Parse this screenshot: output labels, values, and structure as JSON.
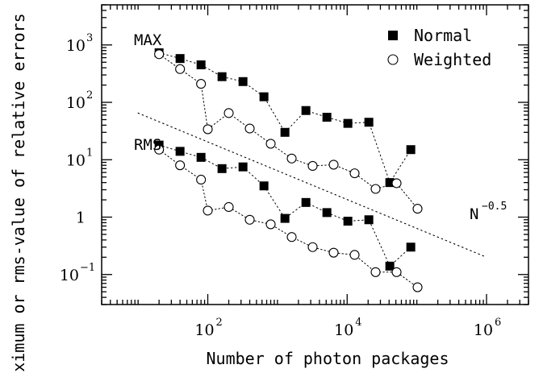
{
  "chart_data": {
    "type": "scatter",
    "xlabel": "Number of photon packages",
    "ylabel": "Maximum or rms-value of relative errors [%]",
    "xscale": "log",
    "yscale": "log",
    "xlim": [
      3,
      4000000
    ],
    "ylim": [
      0.03,
      5000
    ],
    "x_ticks": [
      {
        "value": 100,
        "base": "10",
        "exp": "2"
      },
      {
        "value": 10000,
        "base": "10",
        "exp": "4"
      },
      {
        "value": 1000000,
        "base": "10",
        "exp": "6"
      }
    ],
    "y_ticks": [
      {
        "value": 0.1,
        "base": "10",
        "exp": "−1"
      },
      {
        "value": 1,
        "base": "1",
        "exp": ""
      },
      {
        "value": 10,
        "base": "10",
        "exp": "1"
      },
      {
        "value": 100,
        "base": "10",
        "exp": "2"
      },
      {
        "value": 1000,
        "base": "10",
        "exp": "3"
      }
    ],
    "legend": {
      "position": "top-right",
      "entries": [
        {
          "label": "Normal",
          "marker": "filled-square"
        },
        {
          "label": "Weighted",
          "marker": "open-circle"
        }
      ]
    },
    "annotations": {
      "max": "MAX",
      "rms": "RMS",
      "slope_base": "N",
      "slope_exp": "−0.5"
    },
    "reference_line": {
      "style": "dotted",
      "x": [
        10,
        1000000
      ],
      "y": [
        65,
        0.2
      ]
    },
    "series": [
      {
        "name": "Normal",
        "group": "MAX",
        "marker": "filled-square",
        "x": [
          20,
          40,
          80,
          160,
          320,
          640,
          1280,
          2560,
          5120,
          10240,
          20480,
          40960,
          81920
        ],
        "y": [
          730,
          580,
          450,
          280,
          230,
          125,
          30,
          72,
          55,
          43,
          45,
          4,
          15
        ]
      },
      {
        "name": "Weighted",
        "group": "MAX",
        "marker": "open-circle",
        "x": [
          20,
          40,
          80,
          100,
          200,
          400,
          800,
          1600,
          3200,
          6400,
          12800,
          25600,
          51200,
          102400
        ],
        "y": [
          690,
          380,
          210,
          34,
          65,
          35,
          19,
          10.5,
          7.8,
          8.2,
          5.8,
          3.1,
          3.9,
          1.4
        ]
      },
      {
        "name": "Normal",
        "group": "RMS",
        "marker": "filled-square",
        "x": [
          20,
          40,
          80,
          160,
          320,
          640,
          1280,
          2560,
          5120,
          10240,
          20480,
          40960,
          81920
        ],
        "y": [
          18,
          14,
          11,
          7,
          7.5,
          3.5,
          0.95,
          1.8,
          1.2,
          0.85,
          0.9,
          0.14,
          0.3
        ]
      },
      {
        "name": "Weighted",
        "group": "RMS",
        "marker": "open-circle",
        "x": [
          20,
          40,
          80,
          100,
          200,
          400,
          800,
          1600,
          3200,
          6400,
          12800,
          25600,
          51200,
          102400
        ],
        "y": [
          15,
          8,
          4.5,
          1.3,
          1.5,
          0.9,
          0.75,
          0.45,
          0.3,
          0.24,
          0.22,
          0.11,
          0.11,
          0.06
        ]
      }
    ]
  }
}
